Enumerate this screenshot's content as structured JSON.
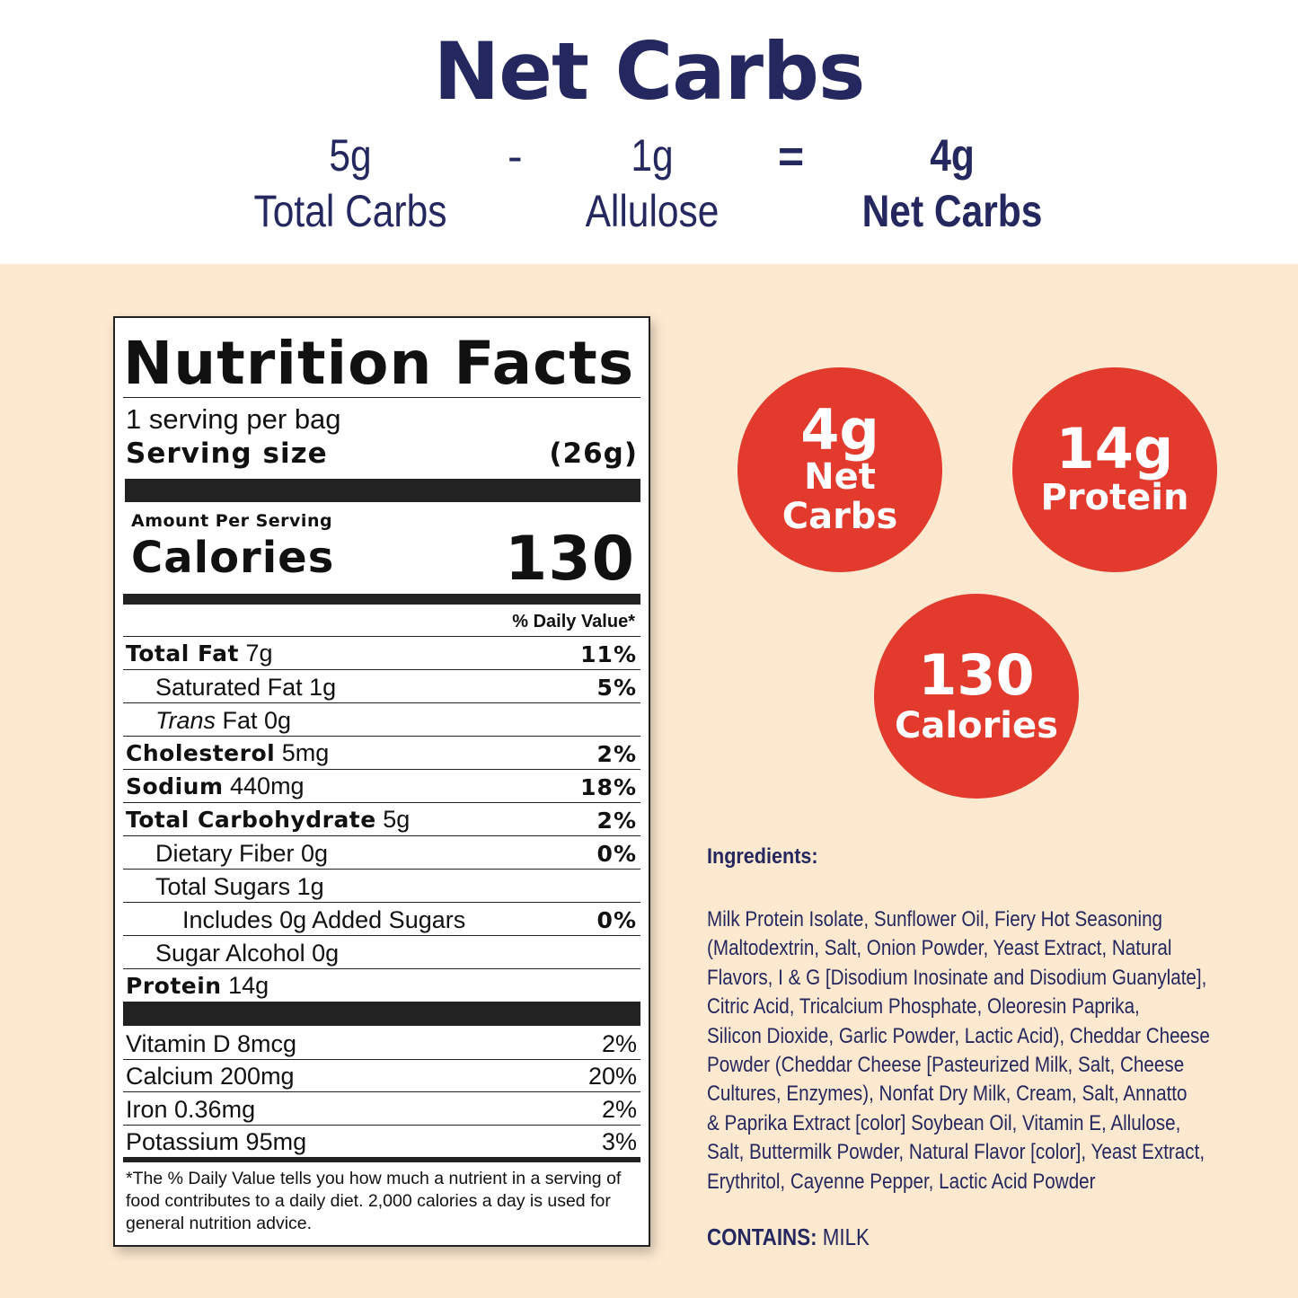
{
  "header": {
    "title": "Net Carbs",
    "equation": [
      {
        "value": "5g",
        "label": "Total Carbs"
      },
      {
        "value": "1g",
        "label": "Allulose"
      },
      {
        "value": "4g",
        "label": "Net Carbs"
      }
    ],
    "minus": "-",
    "equals": "="
  },
  "label": {
    "title": "Nutrition Facts",
    "servings": "1 serving per bag",
    "serving_size_label": "Serving size",
    "serving_size": "(26g)",
    "amount_per_serving": "Amount Per Serving",
    "calories_label": "Calories",
    "calories": "130",
    "dv_header": "% Daily Value*",
    "nutrients": [
      {
        "name": "Total Fat",
        "amount": "7g",
        "dv": "11%",
        "bold": true,
        "indent": 0
      },
      {
        "name": "Saturated Fat 1g",
        "amount": "",
        "dv": "5%",
        "bold": false,
        "indent": 1
      },
      {
        "name": "Trans",
        "amount": "Fat 0g",
        "dv": "",
        "bold": false,
        "indent": 1,
        "italic": true
      },
      {
        "name": "Cholesterol",
        "amount": "5mg",
        "dv": "2%",
        "bold": true,
        "indent": 0
      },
      {
        "name": "Sodium",
        "amount": "440mg",
        "dv": "18%",
        "bold": true,
        "indent": 0
      },
      {
        "name": "Total Carbohydrate",
        "amount": "5g",
        "dv": "2%",
        "bold": true,
        "indent": 0
      },
      {
        "name": "Dietary Fiber 0g",
        "amount": "",
        "dv": "0%",
        "bold": false,
        "indent": 1
      },
      {
        "name": "Total Sugars 1g",
        "amount": "",
        "dv": "",
        "bold": false,
        "indent": 1
      },
      {
        "name": "Includes 0g Added Sugars",
        "amount": "",
        "dv": "0%",
        "bold": false,
        "indent": 2
      },
      {
        "name": "Sugar Alcohol 0g",
        "amount": "",
        "dv": "",
        "bold": false,
        "indent": 1
      },
      {
        "name": "Protein",
        "amount": "14g",
        "dv": "",
        "bold": true,
        "indent": 0
      }
    ],
    "vitamins": [
      {
        "name": "Vitamin D 8mcg",
        "dv": "2%"
      },
      {
        "name": "Calcium 200mg",
        "dv": "20%"
      },
      {
        "name": "Iron 0.36mg",
        "dv": "2%"
      },
      {
        "name": "Potassium 95mg",
        "dv": "3%"
      }
    ],
    "footnote": "*The % Daily Value tells you how much a nutrient in a serving of food contributes to a daily diet. 2,000 calories a day is used for general nutrition advice."
  },
  "badges": [
    {
      "value": "4g",
      "label": "Net Carbs"
    },
    {
      "value": "14g",
      "label": "Protein"
    },
    {
      "value": "130",
      "label": "Calories"
    }
  ],
  "ingredients": {
    "heading": "Ingredients:",
    "lines": [
      "Milk Protein Isolate, Sunflower Oil, Fiery Hot Seasoning",
      "(Maltodextrin, Salt, Onion Powder, Yeast Extract, Natural",
      "Flavors, I & G [Disodium Inosinate and Disodium Guanylate],",
      "Citric Acid, Tricalcium Phosphate, Oleoresin Paprika,",
      "Silicon Dioxide, Garlic Powder, Lactic Acid), Cheddar Cheese",
      "Powder (Cheddar Cheese [Pasteurized Milk, Salt, Cheese",
      "Cultures, Enzymes), Nonfat Dry Milk, Cream, Salt, Annatto",
      "& Paprika Extract [color] Soybean Oil, Vitamin E, Allulose,",
      "Salt, Buttermilk Powder, Natural Flavor [color], Yeast Extract,",
      "Erythritol, Cayenne Pepper, Lactic Acid Powder"
    ],
    "contains_label": "CONTAINS:",
    "contains": "MILK"
  },
  "colors": {
    "navy": "#25275f",
    "cream": "#fde9d0",
    "red": "#e23b2e"
  }
}
